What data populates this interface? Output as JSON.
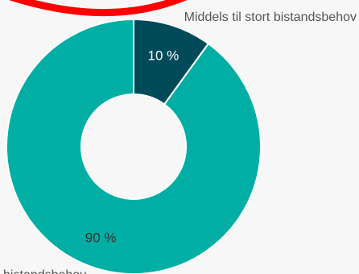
{
  "colors": {
    "background": "#f7f7f7",
    "annotation_arc": "#ff0000",
    "slice_small": "#004a5a",
    "slice_large": "#00aea4",
    "label_dark": "#333333",
    "label_light": "#ffffff"
  },
  "chart_data": {
    "type": "pie",
    "style": "donut",
    "slices": [
      {
        "name": "Middels til stort bistandsbehov",
        "value": 10,
        "label": "10 %",
        "color": "#004a5a"
      },
      {
        "name": "",
        "value": 90,
        "label": "90 %",
        "color": "#00aea4"
      }
    ],
    "title": "",
    "legend": "none",
    "external_labels": {
      "top": "Middels til stort bistandsbehov",
      "bottom_partial": "... bistandsbehov"
    }
  }
}
